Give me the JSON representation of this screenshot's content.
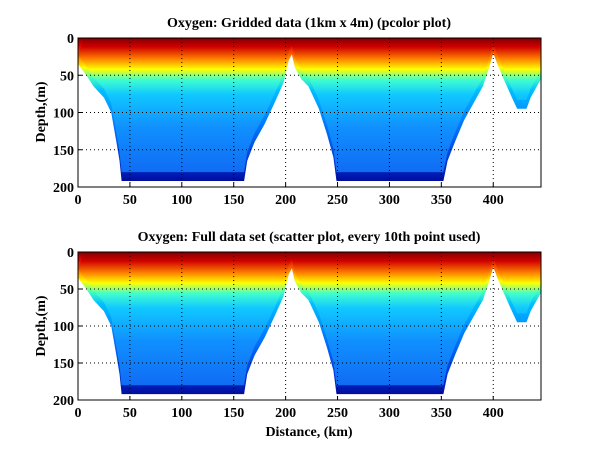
{
  "chart_data": [
    {
      "type": "heatmap",
      "title": "Oxygen: Gridded data (1km x 4m) (pcolor plot)",
      "xlabel": "",
      "ylabel": "Depth,(m)",
      "xlim": [
        0,
        446
      ],
      "ylim": [
        200,
        0
      ],
      "y_reversed": true,
      "grid": true,
      "xticks": [
        "0",
        "50",
        "100",
        "150",
        "200",
        "250",
        "300",
        "350",
        "400"
      ],
      "yticks": [
        "0",
        "50",
        "100",
        "150",
        "200"
      ],
      "colormap": "jet",
      "colors": [
        "#800000",
        "#e00000",
        "#ff8000",
        "#ffff00",
        "#40ffc0",
        "#00c0ff",
        "#0080ff",
        "#0040e0",
        "#00008f"
      ]
    },
    {
      "type": "scatter",
      "title": "Oxygen: Full data set (scatter plot, every 10th point used)",
      "xlabel": "Distance, (km)",
      "ylabel": "Depth,(m)",
      "xlim": [
        0,
        446
      ],
      "ylim": [
        200,
        0
      ],
      "y_reversed": true,
      "grid": true,
      "xticks": [
        "0",
        "50",
        "100",
        "150",
        "200",
        "250",
        "300",
        "350",
        "400"
      ],
      "yticks": [
        "0",
        "50",
        "100",
        "150",
        "200"
      ],
      "colormap": "jet",
      "colors": [
        "#800000",
        "#e00000",
        "#ff8000",
        "#ffff00",
        "#40ffc0",
        "#00c0ff",
        "#0080ff",
        "#0040e0",
        "#00008f"
      ]
    }
  ]
}
